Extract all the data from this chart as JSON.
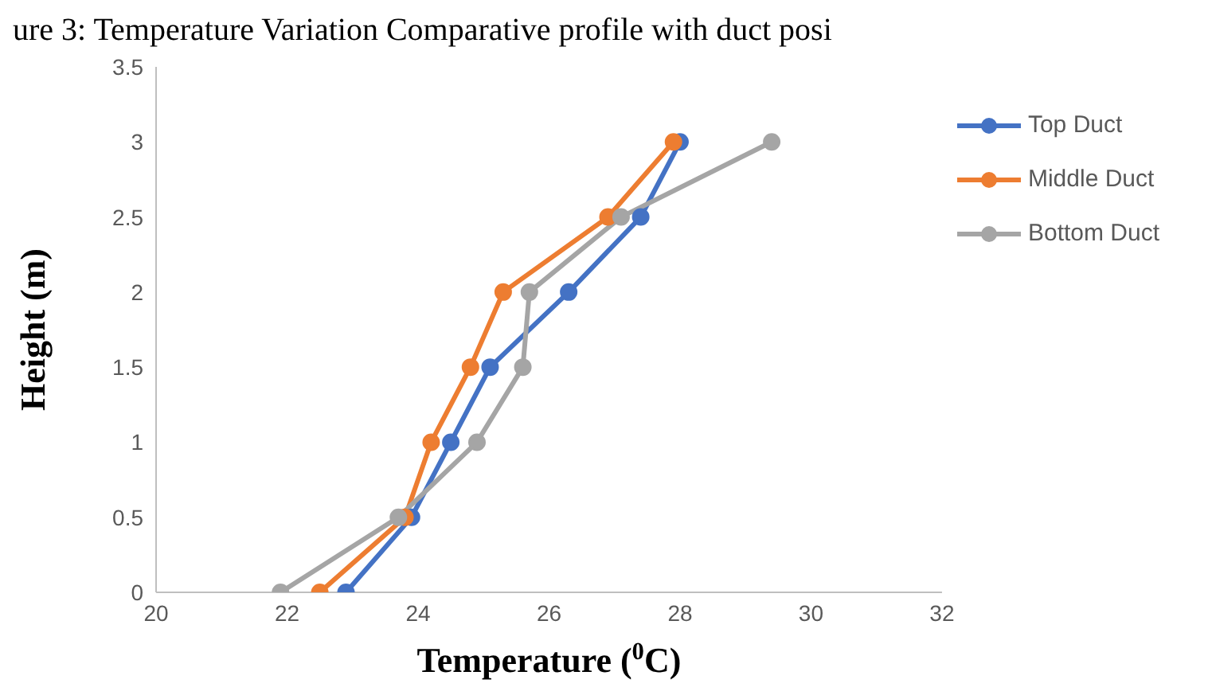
{
  "chart_data": {
    "type": "line",
    "title": "ure 3: Temperature Variation Comparative profile with duct posi",
    "xlabel": "Temperature ($^{0}$C)",
    "ylabel": "Height (m)",
    "xlim": [
      20,
      32
    ],
    "xticks": [
      20,
      22,
      24,
      26,
      28,
      30,
      32
    ],
    "ylim": [
      0,
      3.5
    ],
    "yticks": [
      0,
      0.5,
      1,
      1.5,
      2,
      2.5,
      3,
      3.5
    ],
    "grid": false,
    "legend": "right",
    "marker": "circle",
    "series": [
      {
        "name": "Top Duct",
        "color": "#4472c4",
        "x": [
          22.9,
          23.9,
          24.5,
          25.1,
          26.3,
          27.4,
          28.0
        ],
        "values": [
          0,
          0.5,
          1,
          1.5,
          2,
          2.5,
          3
        ]
      },
      {
        "name": "Middle Duct",
        "color": "#ed7d31",
        "x": [
          22.5,
          23.8,
          24.2,
          24.8,
          25.3,
          26.9,
          27.9
        ],
        "values": [
          0,
          0.5,
          1,
          1.5,
          2,
          2.5,
          3
        ]
      },
      {
        "name": "Bottom Duct",
        "color": "#a5a5a5",
        "x": [
          21.9,
          23.7,
          24.9,
          25.6,
          25.7,
          27.1,
          29.4
        ],
        "values": [
          0,
          0.5,
          1,
          1.5,
          2,
          2.5,
          3
        ]
      }
    ]
  }
}
